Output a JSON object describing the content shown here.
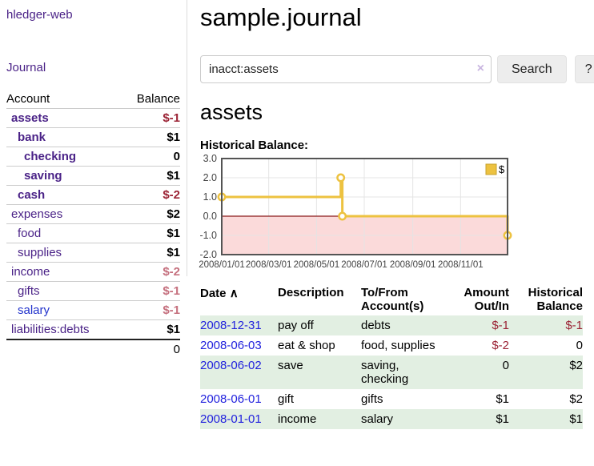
{
  "app": {
    "title": "hledger-web"
  },
  "sidebar": {
    "journal_link": "Journal",
    "header": {
      "account": "Account",
      "balance": "Balance"
    },
    "accounts": [
      {
        "name": "assets",
        "balance": "$-1"
      },
      {
        "name": "bank",
        "balance": "$1"
      },
      {
        "name": "checking",
        "balance": "0"
      },
      {
        "name": "saving",
        "balance": "$1"
      },
      {
        "name": "cash",
        "balance": "$-2"
      },
      {
        "name": "expenses",
        "balance": "$2"
      },
      {
        "name": "food",
        "balance": "$1"
      },
      {
        "name": "supplies",
        "balance": "$1"
      },
      {
        "name": "income",
        "balance": "$-2"
      },
      {
        "name": "gifts",
        "balance": "$-1"
      },
      {
        "name": "salary",
        "balance": "$-1"
      },
      {
        "name": "liabilities:debts",
        "balance": "$1"
      }
    ],
    "total": "0"
  },
  "main": {
    "title": "sample.journal",
    "search": {
      "value": "inacct:assets",
      "clear_icon": "×",
      "button": "Search",
      "help_button": "?"
    },
    "account_heading": "assets",
    "chart_label": "Historical Balance:",
    "register": {
      "headers": {
        "date": "Date",
        "sort_indicator": "∧",
        "description": "Description",
        "accounts": "To/From Account(s)",
        "amount": "Amount Out/In",
        "balance": "Historical Balance"
      },
      "rows": [
        {
          "date": "2008-12-31",
          "description": "pay off",
          "accounts": "debts",
          "amount": "$-1",
          "balance": "$-1"
        },
        {
          "date": "2008-06-03",
          "description": "eat & shop",
          "accounts": "food, supplies",
          "amount": "$-2",
          "balance": "0"
        },
        {
          "date": "2008-06-02",
          "description": "save",
          "accounts": "saving, checking",
          "amount": "0",
          "balance": "$2"
        },
        {
          "date": "2008-06-01",
          "description": "gift",
          "accounts": "gifts",
          "amount": "$1",
          "balance": "$2"
        },
        {
          "date": "2008-01-01",
          "description": "income",
          "accounts": "salary",
          "amount": "$1",
          "balance": "$1"
        }
      ]
    }
  },
  "chart_data": {
    "type": "line",
    "title": "Historical Balance:",
    "series": [
      {
        "name": "$",
        "color": "#edc240",
        "step": true,
        "x": [
          "2008-01-01",
          "2008-06-01",
          "2008-06-03",
          "2008-12-31"
        ],
        "values": [
          1,
          2,
          0,
          -1
        ]
      }
    ],
    "xrange": [
      "2008-01-01",
      "2008-12-31"
    ],
    "ylim": [
      -2,
      3
    ],
    "yticks": [
      3,
      2,
      1,
      0,
      -1,
      -2
    ],
    "xticks": [
      {
        "date": "2008-01-01",
        "label": "2008/01/01"
      },
      {
        "date": "2008-03-01",
        "label": "2008/03/01"
      },
      {
        "date": "2008-05-01",
        "label": "2008/05/01"
      },
      {
        "date": "2008-07-01",
        "label": "2008/07/01"
      },
      {
        "date": "2008-09-01",
        "label": "2008/09/01"
      },
      {
        "date": "2008-11-01",
        "label": "2008/11/01"
      }
    ],
    "grid": true,
    "legend_position": "top-right",
    "plot_border_color": "#545454",
    "grid_color": "#e4e4e4",
    "negative_region_color": "#fbdada",
    "zero_line_color": "#8b1a1a"
  },
  "colors": {
    "link_purple": "#4a2287",
    "link_blue": "#2222dd",
    "negative_dark": "#9b2335",
    "negative_light": "#c5707e",
    "row_green": "#e2efe2",
    "series_gold": "#edc240"
  }
}
